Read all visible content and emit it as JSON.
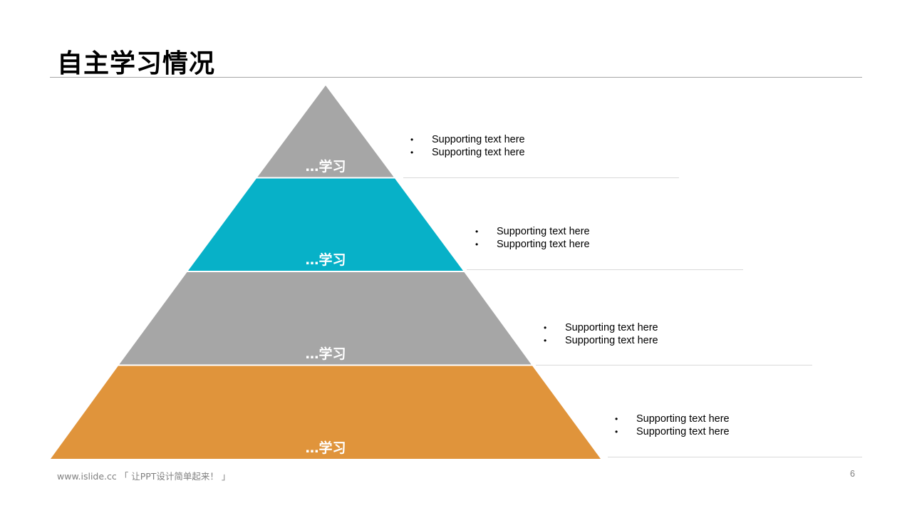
{
  "title": "自主学习情况",
  "levels": [
    {
      "label": "…学习",
      "color": "#a6a6a6",
      "bullets": [
        "Supporting text here",
        "Supporting text here"
      ]
    },
    {
      "label": "…学习",
      "color": "#07b1c8",
      "bullets": [
        "Supporting text here",
        "Supporting text here"
      ]
    },
    {
      "label": "…学习",
      "color": "#a6a6a6",
      "bullets": [
        "Supporting text here",
        "Supporting text here"
      ]
    },
    {
      "label": "…学习",
      "color": "#e0943b",
      "bullets": [
        "Supporting text here",
        "Supporting text here"
      ]
    }
  ],
  "footer": {
    "text": "www.islide.cc 「 让PPT设计简单起来！ 」",
    "page_number": "6"
  }
}
